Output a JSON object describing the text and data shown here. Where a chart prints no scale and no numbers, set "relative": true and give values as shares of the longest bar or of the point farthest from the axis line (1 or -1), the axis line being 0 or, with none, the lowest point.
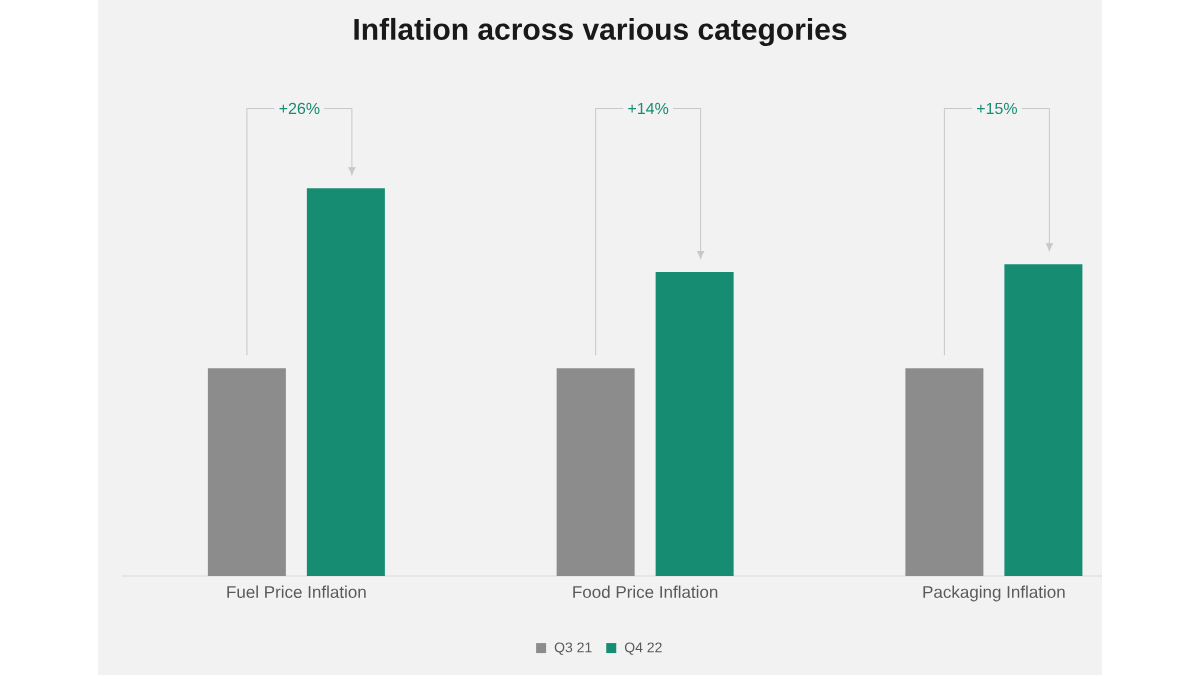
{
  "chart_data": {
    "type": "bar",
    "title": "Inflation across various categories",
    "categories": [
      "Fuel Price Inflation",
      "Food Price Inflation",
      "Packaging Inflation"
    ],
    "relative": true,
    "series": [
      {
        "name": "Q3 21",
        "color": "#8c8c8c",
        "values": [
          0.536,
          0.536,
          0.536
        ]
      },
      {
        "name": "Q4 22",
        "color": "#168c72",
        "values": [
          1,
          0.784,
          0.804
        ]
      }
    ],
    "annotations": [
      "+26%",
      "+14%",
      "+15%"
    ],
    "legend": "bottom"
  }
}
